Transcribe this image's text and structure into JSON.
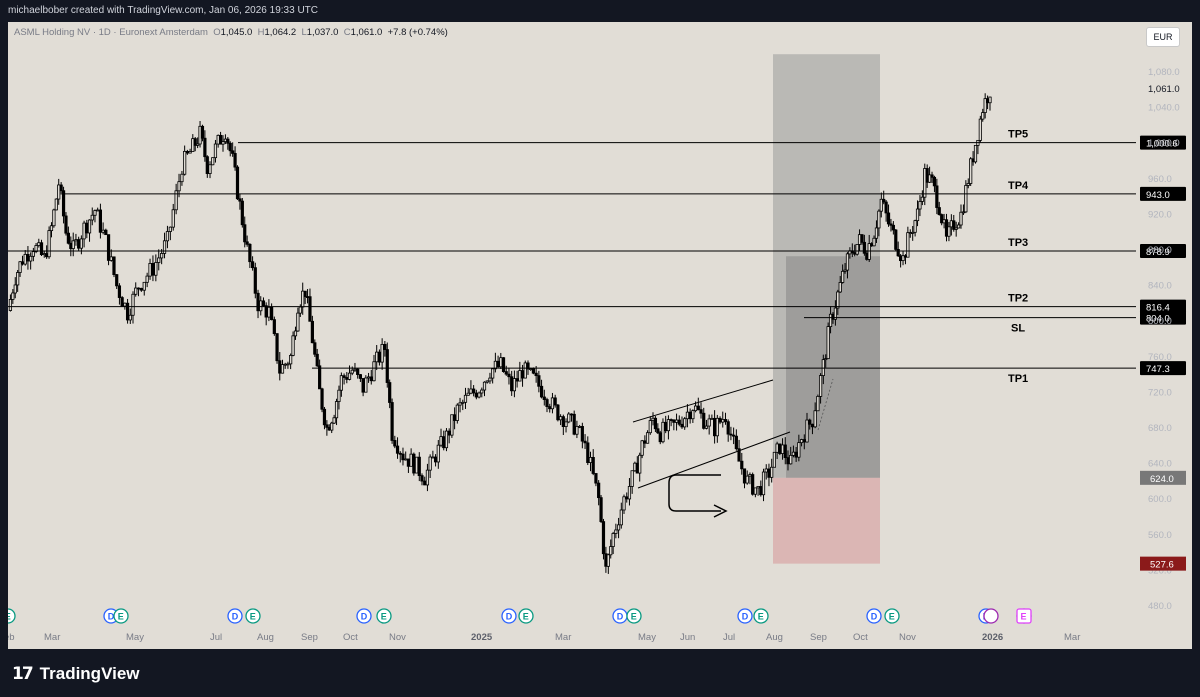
{
  "header": {
    "attribution": "michaelbober created with TradingView.com, Jan 06, 2026 19:33 UTC"
  },
  "symbol": {
    "name": "ASML Holding NV · 1D · Euronext Amsterdam",
    "o_label": "O",
    "o": "1,045.0",
    "h_label": "H",
    "h": "1,064.2",
    "l_label": "L",
    "l": "1,037.0",
    "c_label": "C",
    "c": "1,061.0",
    "change": "+7.8 (+0.74%)"
  },
  "currency": "EUR",
  "footer": {
    "brand": "TradingView"
  },
  "colors": {
    "background": "#e1ddd6",
    "candle": "#000000",
    "stop_zone": "#d8a8a8",
    "target_zone": "#9b9b9b",
    "tp_label_bg": "#000000",
    "sl_label_bg": "#8b1a1a",
    "entry_label_bg": "#787878"
  },
  "chart_data": {
    "type": "candlestick",
    "x_axis": {
      "ticks": [
        "eb",
        "Mar",
        "May",
        "Jul",
        "Aug",
        "Sep",
        "Oct",
        "Nov",
        "2025",
        "Mar",
        "May",
        "Jun",
        "Jul",
        "Aug",
        "Sep",
        "Oct",
        "Nov",
        "2026",
        "Mar"
      ]
    },
    "y_axis": {
      "scale": "linear",
      "range": [
        470,
        1090
      ],
      "ticks": [
        "480.0",
        "520.0",
        "560.0",
        "600.0",
        "640.0",
        "680.0",
        "720.0",
        "760.0",
        "800.0",
        "840.0",
        "880.0",
        "920.0",
        "960.0",
        "1,000.0",
        "1,040.0",
        "1,080.0"
      ]
    },
    "last_price": "1,061.0",
    "price_path": [
      [
        0,
        812
      ],
      [
        2,
        850
      ],
      [
        4,
        870
      ],
      [
        7,
        885
      ],
      [
        10,
        870
      ],
      [
        12,
        905
      ],
      [
        14,
        955
      ],
      [
        16,
        900
      ],
      [
        18,
        880
      ],
      [
        21,
        905
      ],
      [
        24,
        925
      ],
      [
        27,
        890
      ],
      [
        30,
        840
      ],
      [
        33,
        810
      ],
      [
        36,
        840
      ],
      [
        40,
        860
      ],
      [
        44,
        890
      ],
      [
        48,
        975
      ],
      [
        51,
        995
      ],
      [
        53,
        1010
      ],
      [
        55,
        975
      ],
      [
        58,
        1000
      ],
      [
        60,
        1015
      ],
      [
        62,
        980
      ],
      [
        64,
        930
      ],
      [
        66,
        880
      ],
      [
        69,
        820
      ],
      [
        72,
        810
      ],
      [
        75,
        745
      ],
      [
        78,
        760
      ],
      [
        80,
        820
      ],
      [
        82,
        835
      ],
      [
        84,
        780
      ],
      [
        86,
        720
      ],
      [
        88,
        680
      ],
      [
        90,
        700
      ],
      [
        92,
        735
      ],
      [
        95,
        745
      ],
      [
        98,
        725
      ],
      [
        101,
        750
      ],
      [
        104,
        770
      ],
      [
        106,
        675
      ],
      [
        109,
        650
      ],
      [
        112,
        640
      ],
      [
        115,
        625
      ],
      [
        118,
        650
      ],
      [
        121,
        670
      ],
      [
        124,
        700
      ],
      [
        127,
        715
      ],
      [
        130,
        725
      ],
      [
        133,
        745
      ],
      [
        136,
        750
      ],
      [
        139,
        725
      ],
      [
        142,
        745
      ],
      [
        145,
        735
      ],
      [
        148,
        720
      ],
      [
        151,
        700
      ],
      [
        154,
        690
      ],
      [
        157,
        680
      ],
      [
        160,
        650
      ],
      [
        163,
        600
      ],
      [
        165,
        520
      ],
      [
        167,
        560
      ],
      [
        170,
        600
      ],
      [
        173,
        630
      ],
      [
        175,
        660
      ],
      [
        178,
        690
      ],
      [
        180,
        675
      ],
      [
        183,
        680
      ],
      [
        186,
        690
      ],
      [
        189,
        705
      ],
      [
        192,
        690
      ],
      [
        195,
        680
      ],
      [
        198,
        695
      ],
      [
        201,
        650
      ],
      [
        204,
        620
      ],
      [
        207,
        610
      ],
      [
        210,
        630
      ],
      [
        213,
        660
      ],
      [
        216,
        640
      ],
      [
        219,
        670
      ],
      [
        222,
        690
      ],
      [
        225,
        750
      ],
      [
        227,
        800
      ],
      [
        229,
        830
      ],
      [
        231,
        860
      ],
      [
        233,
        880
      ],
      [
        235,
        890
      ],
      [
        237,
        880
      ],
      [
        239,
        900
      ],
      [
        241,
        935
      ],
      [
        243,
        910
      ],
      [
        245,
        890
      ],
      [
        247,
        870
      ],
      [
        249,
        900
      ],
      [
        251,
        920
      ],
      [
        253,
        965
      ],
      [
        255,
        955
      ],
      [
        257,
        930
      ],
      [
        259,
        890
      ],
      [
        261,
        910
      ],
      [
        263,
        920
      ],
      [
        265,
        960
      ],
      [
        267,
        1000
      ],
      [
        269,
        1040
      ],
      [
        271,
        1061
      ]
    ],
    "horizontal_levels": [
      {
        "name": "TP5",
        "value": "1,000.6",
        "price": 1000.6
      },
      {
        "name": "TP4",
        "value": "943.0",
        "price": 943.0
      },
      {
        "name": "TP3",
        "value": "878.9",
        "price": 878.9
      },
      {
        "name": "TP2",
        "value": "816.4",
        "price": 816.4
      },
      {
        "name": "SL",
        "value": "804.0",
        "price": 804.0
      },
      {
        "name": "TP1",
        "value": "747.3",
        "price": 747.3
      }
    ],
    "position_tool": {
      "entry": {
        "value": "624.0",
        "price": 624.0
      },
      "stop": {
        "value": "527.6",
        "price": 527.6
      },
      "target_zone_top": 1100,
      "inner_top": 873
    },
    "events": [
      "E",
      "D",
      "E",
      "D",
      "E",
      "D",
      "E",
      "D",
      "E",
      "D",
      "E",
      "D",
      "E",
      "D",
      "E",
      "D",
      "E",
      "D",
      "E"
    ]
  }
}
